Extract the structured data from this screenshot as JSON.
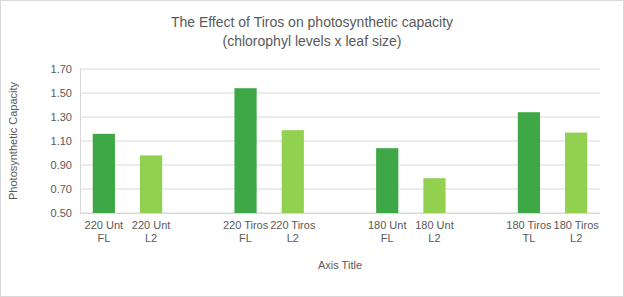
{
  "chart_data": {
    "type": "bar",
    "title": "The Effect of Tiros on photosynthetic capacity",
    "subtitle": "(chlorophyl levels x leaf size)",
    "y_label": "Photosynthetic Capacity",
    "x_label": "Axis Title",
    "categories": [
      "220 Unt FL",
      "220 Unt L2",
      null,
      "220 Tiros FL",
      "220 Tiros L2",
      null,
      "180 Unt FL",
      "180 Unt L2",
      null,
      "180 Tiros TL",
      "180 Tiros L2"
    ],
    "values": [
      1.16,
      0.98,
      null,
      1.54,
      1.19,
      null,
      1.04,
      0.79,
      null,
      1.34,
      1.17
    ],
    "colors": [
      "#3da845",
      "#92d050",
      null,
      "#3da845",
      "#92d050",
      null,
      "#3da845",
      "#92d050",
      null,
      "#3da845",
      "#92d050"
    ],
    "ylim": [
      0.5,
      1.7
    ],
    "yticks": [
      {
        "value": 0.5,
        "label": "0.50"
      },
      {
        "value": 0.7,
        "label": "0.70"
      },
      {
        "value": 0.9,
        "label": "0.90"
      },
      {
        "value": 1.1,
        "label": "1.10"
      },
      {
        "value": 1.3,
        "label": "1.30"
      },
      {
        "value": 1.5,
        "label": "1.50"
      },
      {
        "value": 1.7,
        "label": "1.70"
      }
    ],
    "grid": true
  }
}
